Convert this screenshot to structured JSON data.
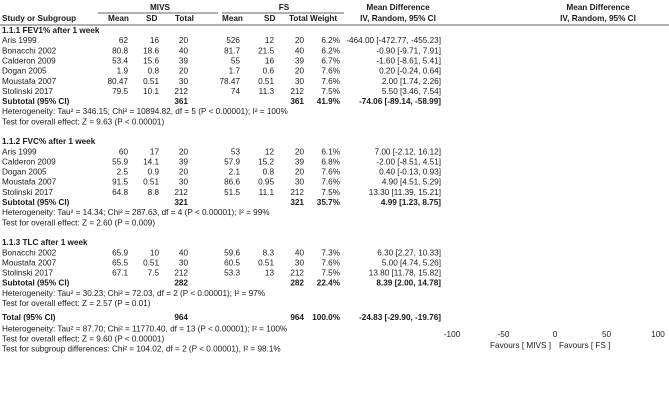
{
  "header": {
    "group1": "MIVS",
    "group2": "FS",
    "md_title": "Mean Difference",
    "md_title_plot": "Mean Difference",
    "columns": [
      "Study or Subgroup",
      "Mean",
      "SD",
      "Total",
      "Mean",
      "SD",
      "Total",
      "Weight"
    ],
    "md_method": "IV, Random, 95% CI",
    "md_method_plot": "IV, Random, 95% CI"
  },
  "subgroups": [
    {
      "title": "1.1.1 FEV1% after 1 week",
      "studies": [
        {
          "name": "Aris 1999",
          "m1": "62",
          "sd1": "16",
          "n1": "20",
          "m2": "526",
          "sd2": "12",
          "n2": "20",
          "weight": "6.2%",
          "ci": "-464.00 [-472.77, -455.23]"
        },
        {
          "name": "Bonacchi 2002",
          "m1": "80.8",
          "sd1": "18.6",
          "n1": "40",
          "m2": "81.7",
          "sd2": "21.5",
          "n2": "40",
          "weight": "6.2%",
          "ci": "-0.90 [-9.71, 7.91]"
        },
        {
          "name": "Calderon 2009",
          "m1": "53.4",
          "sd1": "15.6",
          "n1": "39",
          "m2": "55",
          "sd2": "16",
          "n2": "39",
          "weight": "6.7%",
          "ci": "-1.60 [-8.61, 5.41]"
        },
        {
          "name": "Dogan 2005",
          "m1": "1.9",
          "sd1": "0.8",
          "n1": "20",
          "m2": "1.7",
          "sd2": "0.6",
          "n2": "20",
          "weight": "7.6%",
          "ci": "0.20 [-0.24, 0.64]"
        },
        {
          "name": "Moustafa 2007",
          "m1": "80.47",
          "sd1": "0.51",
          "n1": "30",
          "m2": "78.47",
          "sd2": "0.51",
          "n2": "30",
          "weight": "7.6%",
          "ci": "2.00 [1.74, 2.26]"
        },
        {
          "name": "Stolinski 2017",
          "m1": "79.5",
          "sd1": "10.1",
          "n1": "212",
          "m2": "74",
          "sd2": "11.3",
          "n2": "212",
          "weight": "7.5%",
          "ci": "5.50 [3.46, 7.54]"
        }
      ],
      "subtotal": {
        "label": "Subtotal (95% CI)",
        "n1": "361",
        "n2": "361",
        "weight": "41.9%",
        "ci": "-74.06 [-89.14, -58.99]"
      },
      "heterogeneity": "Heterogeneity: Tau² = 346.15; Chi² = 10894.82, df = 5 (P < 0.00001); I² = 100%",
      "overall": "Test for overall effect: Z = 9.63 (P < 0.00001)"
    },
    {
      "title": "1.1.2 FVC% after 1 week",
      "studies": [
        {
          "name": "Aris 1999",
          "m1": "60",
          "sd1": "17",
          "n1": "20",
          "m2": "53",
          "sd2": "12",
          "n2": "20",
          "weight": "6.1%",
          "ci": "7.00 [-2.12, 16.12]"
        },
        {
          "name": "Calderon 2009",
          "m1": "55.9",
          "sd1": "14.1",
          "n1": "39",
          "m2": "57.9",
          "sd2": "15.2",
          "n2": "39",
          "weight": "6.8%",
          "ci": "-2.00 [-8.51, 4.51]"
        },
        {
          "name": "Dogan 2005",
          "m1": "2.5",
          "sd1": "0.9",
          "n1": "20",
          "m2": "2.1",
          "sd2": "0.8",
          "n2": "20",
          "weight": "7.6%",
          "ci": "0.40 [-0.13, 0.93]"
        },
        {
          "name": "Moustafa 2007",
          "m1": "91.5",
          "sd1": "0.51",
          "n1": "30",
          "m2": "86.6",
          "sd2": "0.95",
          "n2": "30",
          "weight": "7.6%",
          "ci": "4.90 [4.51, 5.29]"
        },
        {
          "name": "Stolinski 2017",
          "m1": "64.8",
          "sd1": "8.8",
          "n1": "212",
          "m2": "51.5",
          "sd2": "11.1",
          "n2": "212",
          "weight": "7.5%",
          "ci": "13.30 [11.39, 15.21]"
        }
      ],
      "subtotal": {
        "label": "Subtotal (95% CI)",
        "n1": "321",
        "n2": "321",
        "weight": "35.7%",
        "ci": "4.99 [1.23, 8.75]"
      },
      "heterogeneity": "Heterogeneity: Tau² = 14.34; Chi² = 287.63, df = 4 (P < 0.00001); I² = 99%",
      "overall": "Test for overall effect: Z = 2.60 (P = 0.009)"
    },
    {
      "title": "1.1.3 TLC after 1 week",
      "studies": [
        {
          "name": "Bonacchi 2002",
          "m1": "65.9",
          "sd1": "10",
          "n1": "40",
          "m2": "59.6",
          "sd2": "8.3",
          "n2": "40",
          "weight": "7.3%",
          "ci": "6.30 [2.27, 10.33]"
        },
        {
          "name": "Moustafa 2007",
          "m1": "65.5",
          "sd1": "0.51",
          "n1": "30",
          "m2": "60.5",
          "sd2": "0.51",
          "n2": "30",
          "weight": "7.6%",
          "ci": "5.00 [4.74, 5.26]"
        },
        {
          "name": "Stolinski 2017",
          "m1": "67.1",
          "sd1": "7.5",
          "n1": "212",
          "m2": "53.3",
          "sd2": "13",
          "n2": "212",
          "weight": "7.5%",
          "ci": "13.80 [11.78, 15.82]"
        }
      ],
      "subtotal": {
        "label": "Subtotal (95% CI)",
        "n1": "282",
        "n2": "282",
        "weight": "22.4%",
        "ci": "8.39 [2.00, 14.78]"
      },
      "heterogeneity": "Heterogeneity: Tau² = 30.23; Chi² = 72.03, df = 2 (P < 0.00001); I² = 97%",
      "overall": "Test for overall effect: Z = 2.57 (P = 0.01)"
    }
  ],
  "total": {
    "label": "Total (95% CI)",
    "n1": "964",
    "n2": "964",
    "weight": "100.0%",
    "ci": "-24.83 [-29.90, -19.76]",
    "heterogeneity": "Heterogeneity: Tau² = 87.70; Chi² = 11770.40, df = 13 (P < 0.00001); I² = 100%",
    "overall": "Test for overall effect: Z = 9.60 (P < 0.00001)",
    "subgroup_diff": "Test for subgroup differences: Chi² = 104.02, df = 2 (P < 0.00001), I² = 98.1%"
  },
  "chart_data": {
    "type": "forest",
    "xlim": [
      -100,
      100
    ],
    "ticks": [
      -100,
      -50,
      0,
      50,
      100
    ],
    "tick_labels": [
      "-100",
      "-50",
      "0",
      "50",
      "100"
    ],
    "favours_left": "Favours [ MIVS ]",
    "favours_right": "Favours [ FS ]",
    "study_color": "#4caf50",
    "diamond_color": "#000000",
    "groups": [
      {
        "name": "1.1.1 FEV1% after 1 week",
        "points": [
          {
            "study": "Aris 1999",
            "md": -464.0,
            "lo": -472.77,
            "hi": -455.23,
            "weight": 6.2
          },
          {
            "study": "Bonacchi 2002",
            "md": -0.9,
            "lo": -9.71,
            "hi": 7.91,
            "weight": 6.2
          },
          {
            "study": "Calderon 2009",
            "md": -1.6,
            "lo": -8.61,
            "hi": 5.41,
            "weight": 6.7
          },
          {
            "study": "Dogan 2005",
            "md": 0.2,
            "lo": -0.24,
            "hi": 0.64,
            "weight": 7.6
          },
          {
            "study": "Moustafa 2007",
            "md": 2.0,
            "lo": 1.74,
            "hi": 2.26,
            "weight": 7.6
          },
          {
            "study": "Stolinski 2017",
            "md": 5.5,
            "lo": 3.46,
            "hi": 7.54,
            "weight": 7.5
          }
        ],
        "subtotal": {
          "md": -74.06,
          "lo": -89.14,
          "hi": -58.99
        }
      },
      {
        "name": "1.1.2 FVC% after 1 week",
        "points": [
          {
            "study": "Aris 1999",
            "md": 7.0,
            "lo": -2.12,
            "hi": 16.12,
            "weight": 6.1
          },
          {
            "study": "Calderon 2009",
            "md": -2.0,
            "lo": -8.51,
            "hi": 4.51,
            "weight": 6.8
          },
          {
            "study": "Dogan 2005",
            "md": 0.4,
            "lo": -0.13,
            "hi": 0.93,
            "weight": 7.6
          },
          {
            "study": "Moustafa 2007",
            "md": 4.9,
            "lo": 4.51,
            "hi": 5.29,
            "weight": 7.6
          },
          {
            "study": "Stolinski 2017",
            "md": 13.3,
            "lo": 11.39,
            "hi": 15.21,
            "weight": 7.5
          }
        ],
        "subtotal": {
          "md": 4.99,
          "lo": 1.23,
          "hi": 8.75
        }
      },
      {
        "name": "1.1.3 TLC after 1 week",
        "points": [
          {
            "study": "Bonacchi 2002",
            "md": 6.3,
            "lo": 2.27,
            "hi": 10.33,
            "weight": 7.3
          },
          {
            "study": "Moustafa 2007",
            "md": 5.0,
            "lo": 4.74,
            "hi": 5.26,
            "weight": 7.6
          },
          {
            "study": "Stolinski 2017",
            "md": 13.8,
            "lo": 11.78,
            "hi": 15.82,
            "weight": 7.5
          }
        ],
        "subtotal": {
          "md": 8.39,
          "lo": 2.0,
          "hi": 14.78
        }
      }
    ],
    "total": {
      "md": -24.83,
      "lo": -29.9,
      "hi": -19.76
    }
  }
}
